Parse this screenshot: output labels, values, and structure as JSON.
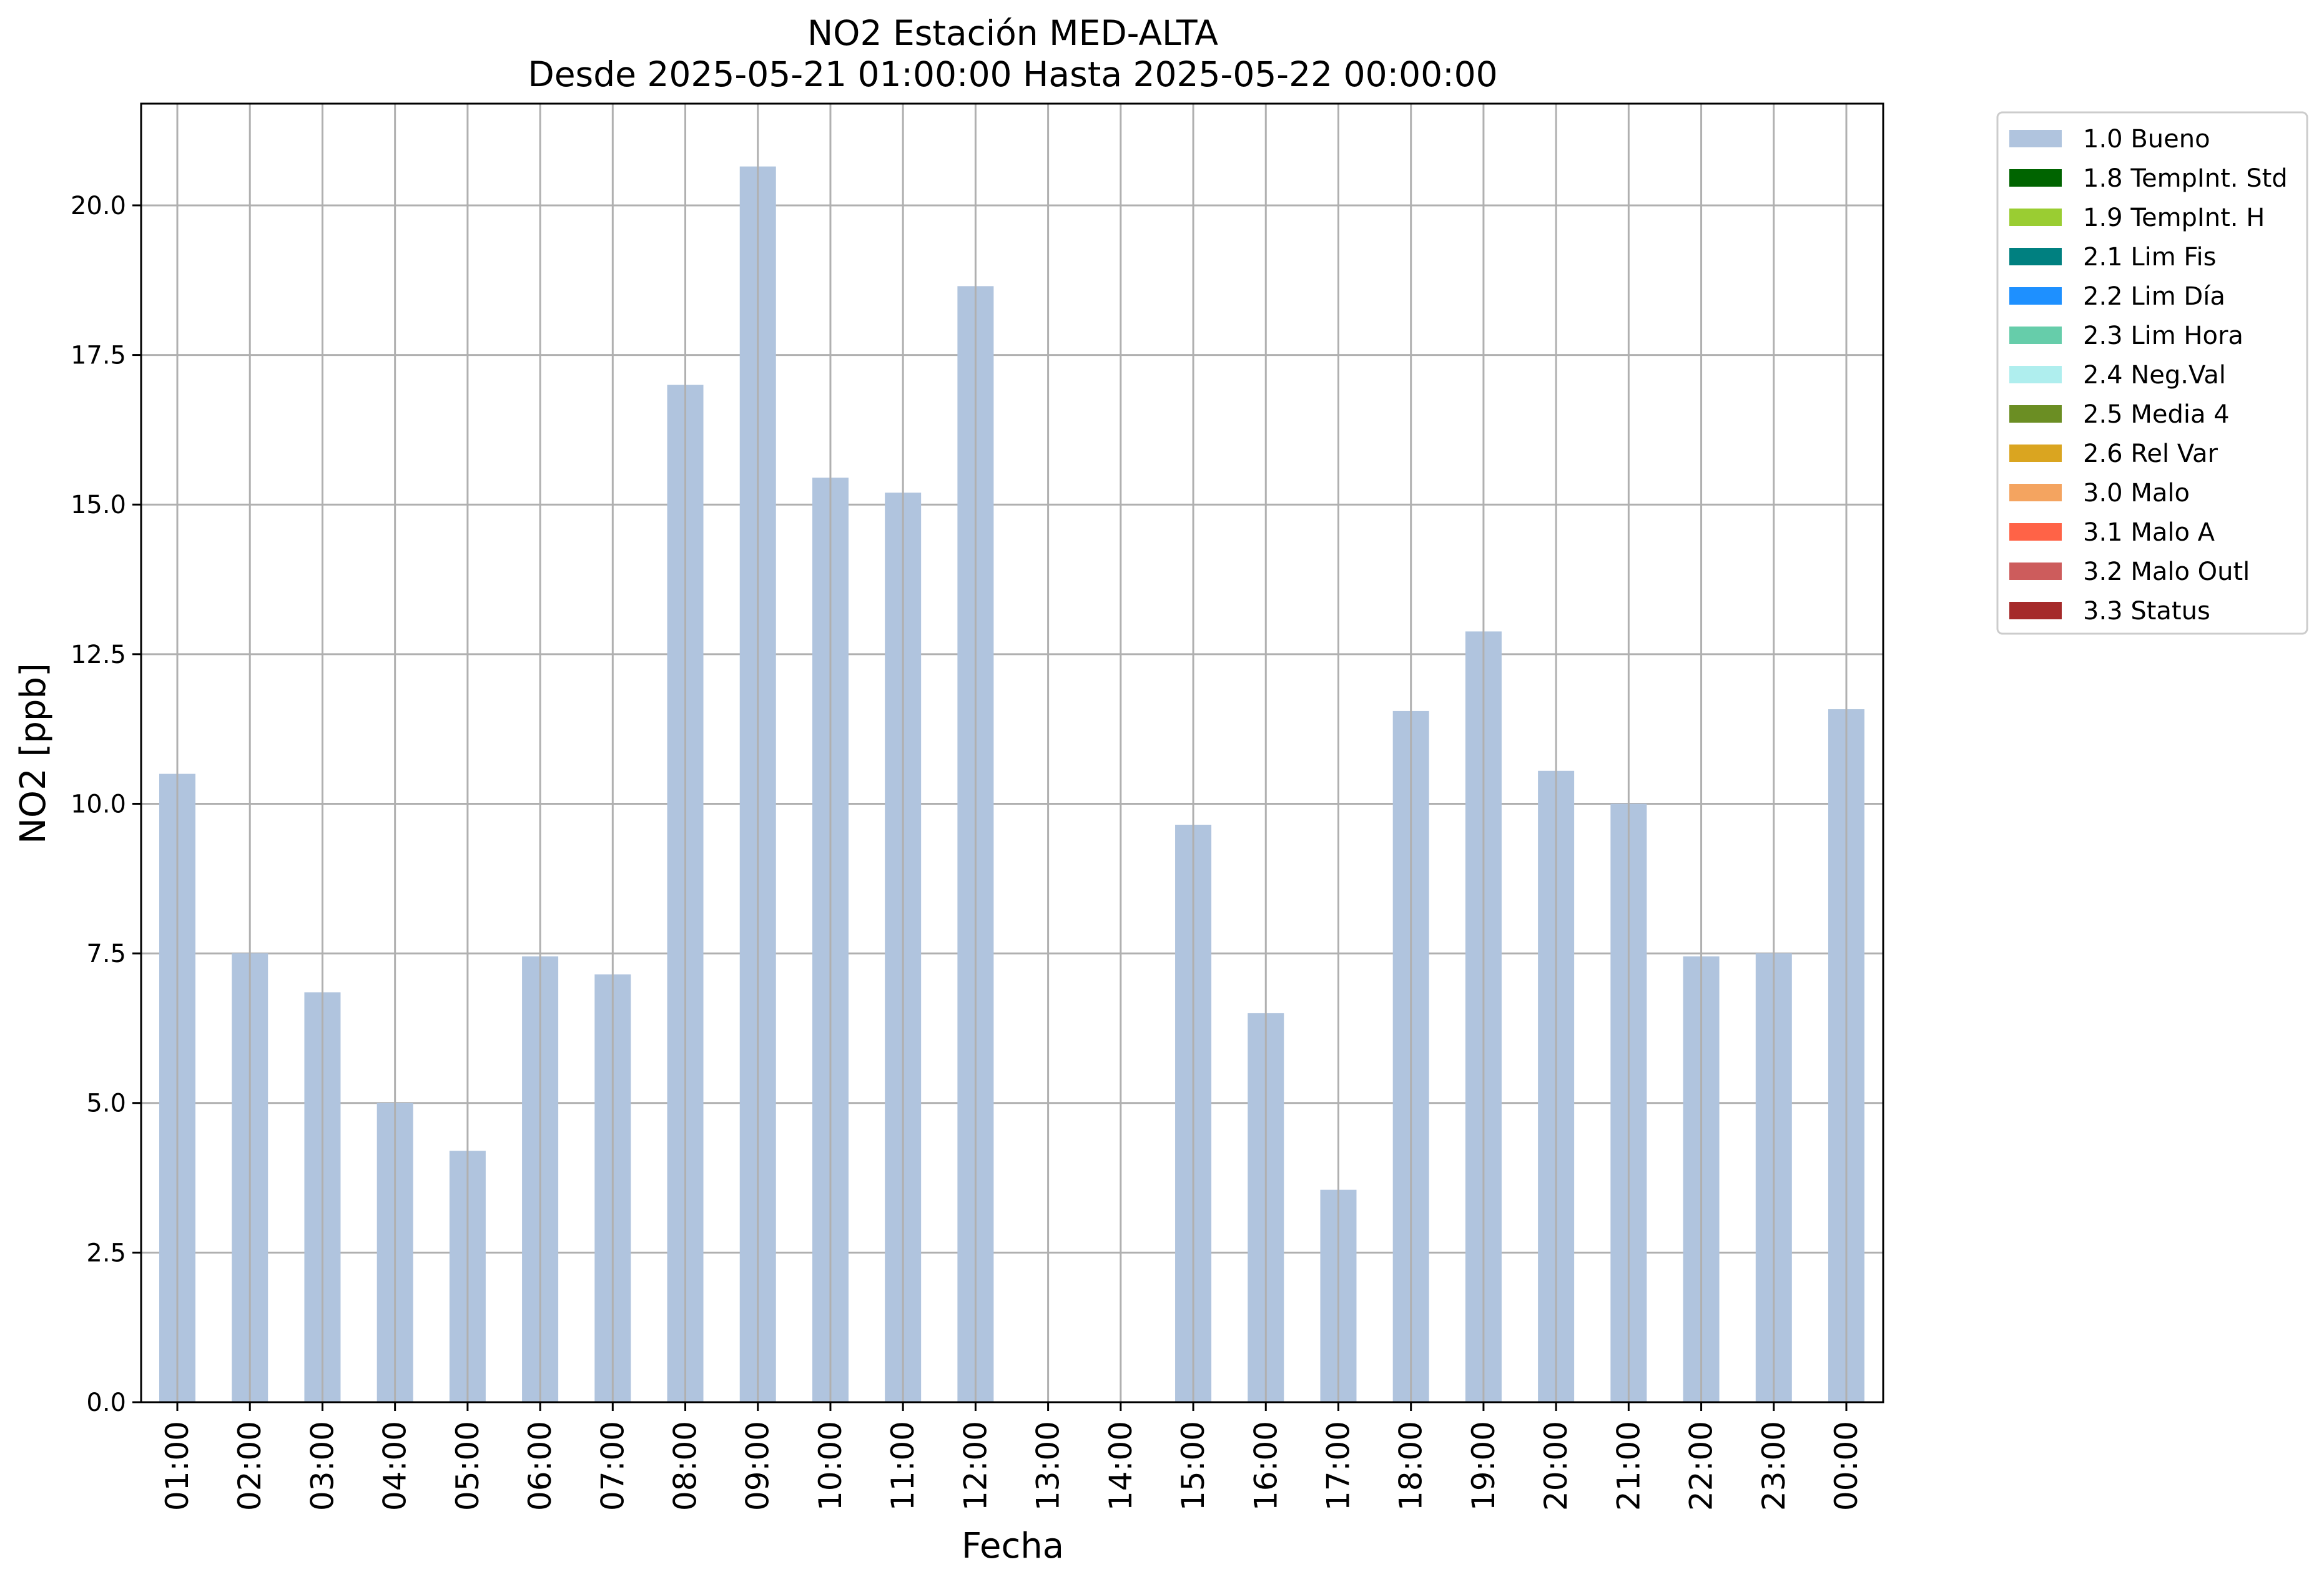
{
  "chart_data": {
    "type": "bar",
    "title": "NO2 Estación MED-ALTA",
    "subtitle": "Desde 2025-05-21 01:00:00 Hasta 2025-05-22 00:00:00",
    "xlabel": "Fecha",
    "ylabel": "NO2 [ppb]",
    "ylim": [
      0,
      21.7
    ],
    "yticks": [
      "0.0",
      "2.5",
      "5.0",
      "7.5",
      "10.0",
      "12.5",
      "15.0",
      "17.5",
      "20.0"
    ],
    "grid": true,
    "legend_position": "outside-right",
    "categories": [
      "01:00",
      "02:00",
      "03:00",
      "04:00",
      "05:00",
      "06:00",
      "07:00",
      "08:00",
      "09:00",
      "10:00",
      "11:00",
      "12:00",
      "13:00",
      "14:00",
      "15:00",
      "16:00",
      "17:00",
      "18:00",
      "19:00",
      "20:00",
      "21:00",
      "22:00",
      "23:00",
      "00:00"
    ],
    "series": [
      {
        "name": "1.0 Bueno",
        "color": "#b0c4de",
        "values": [
          10.5,
          7.5,
          6.85,
          5.0,
          4.2,
          7.45,
          7.15,
          17.0,
          20.65,
          15.45,
          15.2,
          18.65,
          null,
          null,
          9.65,
          6.5,
          3.55,
          11.55,
          12.88,
          10.55,
          10.0,
          7.45,
          7.5,
          11.58
        ]
      }
    ],
    "legend": [
      {
        "label": "1.0 Bueno",
        "color": "#b0c4de"
      },
      {
        "label": "1.8 TempInt. Std",
        "color": "#006400"
      },
      {
        "label": "1.9 TempInt. H",
        "color": "#9acd32"
      },
      {
        "label": "2.1 Lim Fis",
        "color": "#008080"
      },
      {
        "label": "2.2 Lim Día",
        "color": "#1e90ff"
      },
      {
        "label": "2.3 Lim Hora",
        "color": "#66cdaa"
      },
      {
        "label": "2.4 Neg.Val",
        "color": "#afeeee"
      },
      {
        "label": "2.5 Media 4",
        "color": "#6b8e23"
      },
      {
        "label": "2.6 Rel Var",
        "color": "#daa520"
      },
      {
        "label": "3.0 Malo",
        "color": "#f4a460"
      },
      {
        "label": "3.1 Malo A",
        "color": "#ff6347"
      },
      {
        "label": "3.2 Malo Outl",
        "color": "#cd5c5c"
      },
      {
        "label": "3.3 Status",
        "color": "#a52a2a"
      }
    ]
  }
}
